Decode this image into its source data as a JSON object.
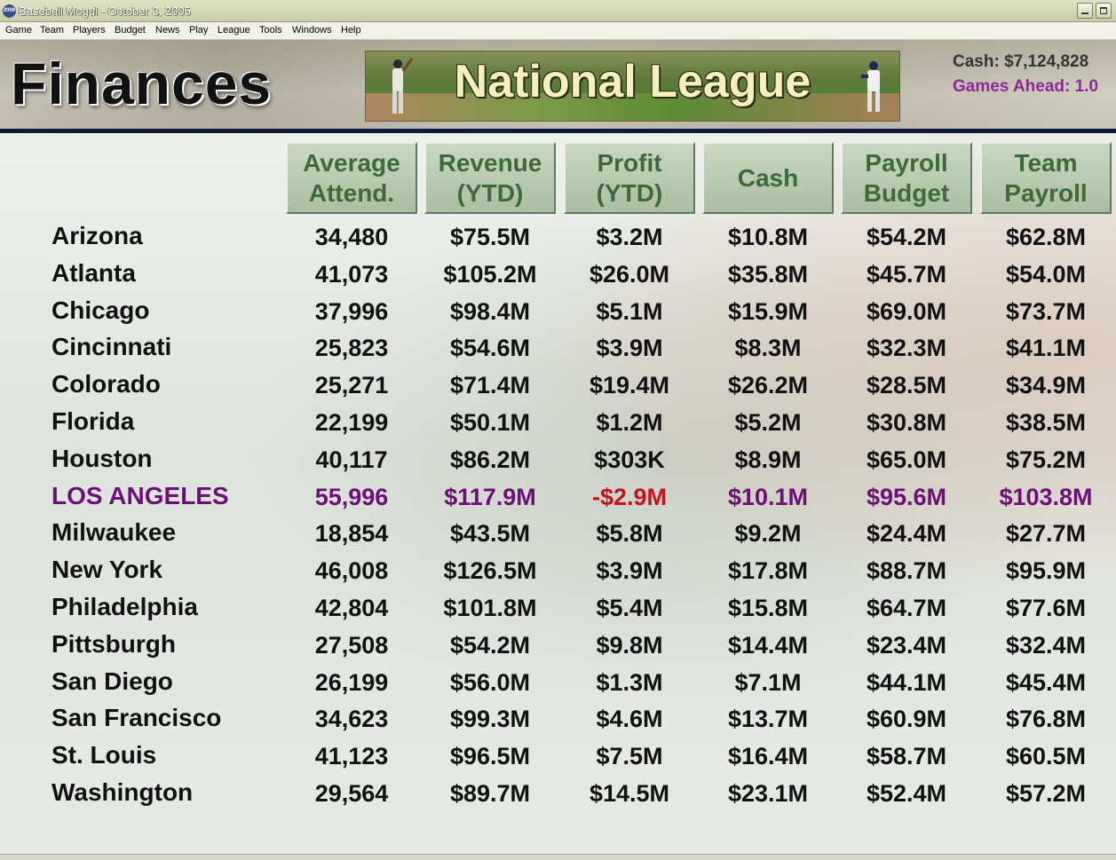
{
  "window": {
    "title": "Baseball Mogul - October 3, 2005",
    "icon_text": "2006"
  },
  "menu": [
    "Game",
    "Team",
    "Players",
    "Budget",
    "News",
    "Play",
    "League",
    "Tools",
    "Windows",
    "Help"
  ],
  "header": {
    "page_title": "Finances",
    "league_banner": "National League",
    "cash": "Cash: $7,124,828",
    "games_ahead": "Games Ahead: 1.0"
  },
  "table": {
    "columns": [
      "Average\nAttend.",
      "Revenue\n(YTD)",
      "Profit\n(YTD)",
      "Cash",
      "Payroll\nBudget",
      "Team\nPayroll"
    ],
    "rows": [
      {
        "team": "Arizona",
        "values": [
          "34,480",
          "$75.5M",
          "$3.2M",
          "$10.8M",
          "$54.2M",
          "$62.8M"
        ]
      },
      {
        "team": "Atlanta",
        "values": [
          "41,073",
          "$105.2M",
          "$26.0M",
          "$35.8M",
          "$45.7M",
          "$54.0M"
        ]
      },
      {
        "team": "Chicago",
        "values": [
          "37,996",
          "$98.4M",
          "$5.1M",
          "$15.9M",
          "$69.0M",
          "$73.7M"
        ]
      },
      {
        "team": "Cincinnati",
        "values": [
          "25,823",
          "$54.6M",
          "$3.9M",
          "$8.3M",
          "$32.3M",
          "$41.1M"
        ]
      },
      {
        "team": "Colorado",
        "values": [
          "25,271",
          "$71.4M",
          "$19.4M",
          "$26.2M",
          "$28.5M",
          "$34.9M"
        ]
      },
      {
        "team": "Florida",
        "values": [
          "22,199",
          "$50.1M",
          "$1.2M",
          "$5.2M",
          "$30.8M",
          "$38.5M"
        ]
      },
      {
        "team": "Houston",
        "values": [
          "40,117",
          "$86.2M",
          "$303K",
          "$8.9M",
          "$65.0M",
          "$75.2M"
        ]
      },
      {
        "team": "LOS ANGELES",
        "values": [
          "55,996",
          "$117.9M",
          "-$2.9M",
          "$10.1M",
          "$95.6M",
          "$103.8M"
        ],
        "highlight": true
      },
      {
        "team": "Milwaukee",
        "values": [
          "18,854",
          "$43.5M",
          "$5.8M",
          "$9.2M",
          "$24.4M",
          "$27.7M"
        ]
      },
      {
        "team": "New York",
        "values": [
          "46,008",
          "$126.5M",
          "$3.9M",
          "$17.8M",
          "$88.7M",
          "$95.9M"
        ]
      },
      {
        "team": "Philadelphia",
        "values": [
          "42,804",
          "$101.8M",
          "$5.4M",
          "$15.8M",
          "$64.7M",
          "$77.6M"
        ]
      },
      {
        "team": "Pittsburgh",
        "values": [
          "27,508",
          "$54.2M",
          "$9.8M",
          "$14.4M",
          "$23.4M",
          "$32.4M"
        ]
      },
      {
        "team": "San Diego",
        "values": [
          "26,199",
          "$56.0M",
          "$1.3M",
          "$7.1M",
          "$44.1M",
          "$45.4M"
        ]
      },
      {
        "team": "San Francisco",
        "values": [
          "34,623",
          "$99.3M",
          "$4.6M",
          "$13.7M",
          "$60.9M",
          "$76.8M"
        ]
      },
      {
        "team": "St. Louis",
        "values": [
          "41,123",
          "$96.5M",
          "$7.5M",
          "$16.4M",
          "$58.7M",
          "$60.5M"
        ]
      },
      {
        "team": "Washington",
        "values": [
          "29,564",
          "$89.7M",
          "$14.5M",
          "$23.1M",
          "$52.4M",
          "$57.2M"
        ]
      }
    ]
  },
  "colors": {
    "highlight_team": "#6b1078",
    "negative_value": "#c0161b",
    "header_text": "#3e6a3a"
  }
}
